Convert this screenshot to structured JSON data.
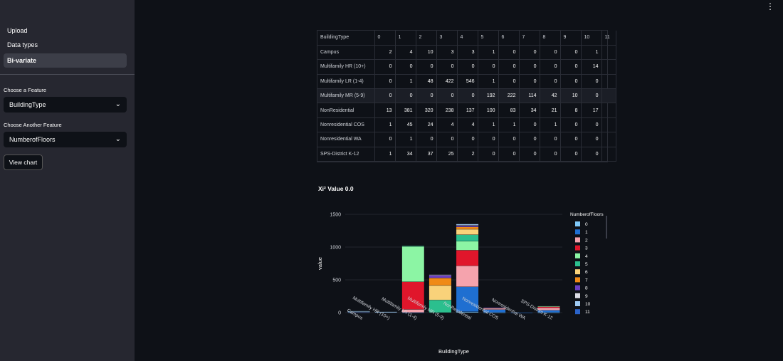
{
  "sidebar": {
    "nav": [
      "Upload",
      "Data types",
      "Bi-variate"
    ],
    "feature1_label": "Choose a Feature",
    "feature1_value": "BuildingType",
    "feature2_label": "Choose Another Feature",
    "feature2_value": "NumberofFloors",
    "view_chart": "View chart"
  },
  "table": {
    "header": [
      "BuildingType",
      "0",
      "1",
      "2",
      "3",
      "4",
      "5",
      "6",
      "7",
      "8",
      "9",
      "10",
      "11"
    ],
    "rows": [
      {
        "name": "Campus",
        "vals": [
          "2",
          "4",
          "10",
          "3",
          "3",
          "1",
          "0",
          "0",
          "0",
          "0",
          "1",
          ""
        ]
      },
      {
        "name": "Multifamily HR (10+)",
        "vals": [
          "0",
          "0",
          "0",
          "0",
          "0",
          "0",
          "0",
          "0",
          "0",
          "0",
          "14",
          ""
        ]
      },
      {
        "name": "Multifamily LR (1-4)",
        "vals": [
          "0",
          "1",
          "48",
          "422",
          "546",
          "1",
          "0",
          "0",
          "0",
          "0",
          "0",
          ""
        ]
      },
      {
        "name": "Multifamily MR (5-9)",
        "vals": [
          "0",
          "0",
          "0",
          "0",
          "0",
          "192",
          "222",
          "114",
          "42",
          "10",
          "0",
          ""
        ]
      },
      {
        "name": "NonResidential",
        "vals": [
          "13",
          "381",
          "320",
          "238",
          "137",
          "100",
          "83",
          "34",
          "21",
          "8",
          "17",
          ""
        ]
      },
      {
        "name": "Nonresidential COS",
        "vals": [
          "1",
          "45",
          "24",
          "4",
          "4",
          "1",
          "1",
          "0",
          "1",
          "0",
          "0",
          ""
        ]
      },
      {
        "name": "Nonresidential WA",
        "vals": [
          "0",
          "1",
          "0",
          "0",
          "0",
          "0",
          "0",
          "0",
          "0",
          "0",
          "0",
          ""
        ]
      },
      {
        "name": "SPS-District K-12",
        "vals": [
          "1",
          "34",
          "37",
          "25",
          "2",
          "0",
          "0",
          "0",
          "0",
          "0",
          "0",
          ""
        ]
      }
    ]
  },
  "chi_text": "Xi² Value 0.0",
  "chart_data": {
    "type": "bar",
    "stacked": true,
    "xlabel": "BuildingType",
    "ylabel": "value",
    "ylim": [
      0,
      1500
    ],
    "yticks": [
      0,
      500,
      1000,
      1500
    ],
    "legend_title": "NumberofFloors",
    "categories": [
      "Campus",
      "Multifamily HR (10+)",
      "Multifamily LR (1-4)",
      "Multifamily MR (5-9)",
      "NonResidential",
      "Nonresidential COS",
      "Nonresidential WA",
      "SPS-District K-12"
    ],
    "series": [
      {
        "name": "0",
        "color": "#7fc8f8",
        "values": [
          2,
          0,
          0,
          0,
          13,
          1,
          0,
          1
        ]
      },
      {
        "name": "1",
        "color": "#1f6fd1",
        "values": [
          4,
          0,
          1,
          0,
          381,
          45,
          1,
          34
        ]
      },
      {
        "name": "2",
        "color": "#f5a3ad",
        "values": [
          10,
          0,
          48,
          0,
          320,
          24,
          0,
          37
        ]
      },
      {
        "name": "3",
        "color": "#e0162b",
        "values": [
          3,
          0,
          422,
          0,
          238,
          4,
          0,
          25
        ]
      },
      {
        "name": "4",
        "color": "#8cf5a4",
        "values": [
          3,
          0,
          546,
          0,
          137,
          4,
          0,
          2
        ]
      },
      {
        "name": "5",
        "color": "#2bbf8e",
        "values": [
          1,
          0,
          1,
          192,
          100,
          1,
          0,
          0
        ]
      },
      {
        "name": "6",
        "color": "#f9d27a",
        "values": [
          0,
          0,
          0,
          222,
          83,
          1,
          0,
          0
        ]
      },
      {
        "name": "7",
        "color": "#f08a16",
        "values": [
          0,
          0,
          0,
          114,
          34,
          0,
          0,
          0
        ]
      },
      {
        "name": "8",
        "color": "#6b3fc4",
        "values": [
          0,
          0,
          0,
          42,
          21,
          1,
          0,
          0
        ]
      },
      {
        "name": "9",
        "color": "#dddde6",
        "values": [
          0,
          0,
          0,
          10,
          8,
          0,
          0,
          0
        ]
      },
      {
        "name": "10",
        "color": "#9ec9f2",
        "values": [
          1,
          14,
          0,
          0,
          17,
          0,
          0,
          0
        ]
      },
      {
        "name": "11",
        "color": "#2a63c9",
        "values": [
          0,
          0,
          0,
          0,
          0,
          0,
          0,
          0
        ]
      }
    ]
  }
}
